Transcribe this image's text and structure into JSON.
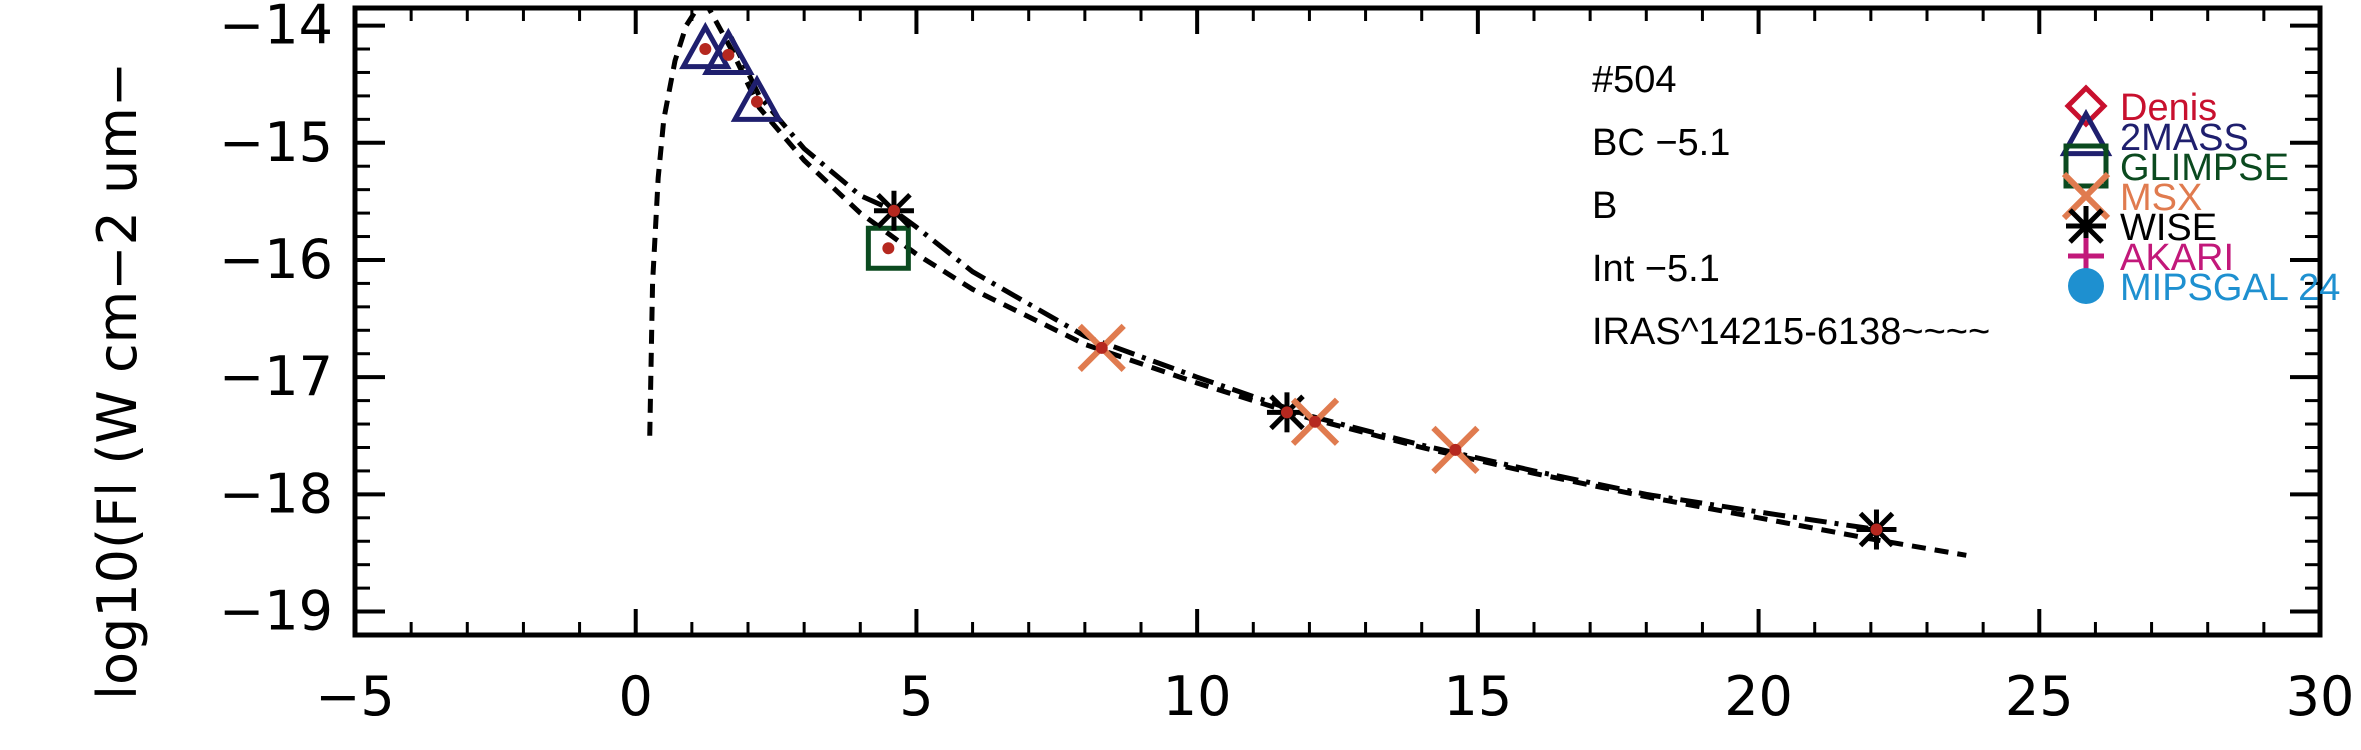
{
  "chart_data": {
    "type": "scatter",
    "ylabel": "log10(Fl (W cm−2 um−",
    "xlim": [
      -5,
      30
    ],
    "ylim": [
      -19.2,
      -13.85
    ],
    "x_ticks": [
      -5,
      0,
      5,
      10,
      15,
      20,
      25,
      30
    ],
    "x_tick_labels": [
      "−5",
      "0",
      "5",
      "10",
      "15",
      "20",
      "25",
      "30"
    ],
    "y_ticks": [
      -14,
      -15,
      -16,
      -17,
      -18,
      -19
    ],
    "y_tick_labels": [
      "−14",
      "−15",
      "−16",
      "−17",
      "−18",
      "−19"
    ],
    "annotations": [
      "#504",
      "BC −5.1",
      "B",
      "Int −5.1",
      "IRAS^14215-6138~~~~"
    ],
    "legend": {
      "placement": "top-right",
      "entries": [
        {
          "label": "Denis",
          "color": "#c8102e",
          "marker": "diamond"
        },
        {
          "label": "2MASS",
          "color": "#1f1f6e",
          "marker": "triangle"
        },
        {
          "label": "GLIMPSE",
          "color": "#0b4a1f",
          "marker": "square"
        },
        {
          "label": "MSX",
          "color": "#e07b4f",
          "marker": "x"
        },
        {
          "label": "WISE",
          "color": "#000000",
          "marker": "asterisk"
        },
        {
          "label": "AKARI",
          "color": "#c2187a",
          "marker": "plus"
        },
        {
          "label": "MIPSGAL 24",
          "color": "#1e90d0",
          "marker": "circle"
        }
      ]
    },
    "series": [
      {
        "marker": "triangle",
        "color": "#1f1f6e",
        "x": [
          1.24,
          1.65,
          2.16
        ],
        "y": [
          -14.2,
          -14.25,
          -14.65
        ]
      },
      {
        "marker": "square",
        "color": "#0b4a1f",
        "x": [
          4.5
        ],
        "y": [
          -15.9
        ]
      },
      {
        "marker": "asterisk",
        "color": "#000000",
        "x": [
          4.6,
          11.6,
          22.1
        ],
        "y": [
          -15.58,
          -17.3,
          -18.3
        ]
      },
      {
        "marker": "x",
        "color": "#e07b4f",
        "x": [
          8.3,
          12.1,
          14.6
        ],
        "y": [
          -16.75,
          -17.38,
          -17.62
        ]
      },
      {
        "marker": "dot",
        "color": "#b5281f",
        "x": [
          1.24,
          1.65,
          2.16,
          4.5,
          4.6,
          8.3,
          11.6,
          12.1,
          14.6,
          22.1
        ],
        "y": [
          -14.2,
          -14.25,
          -14.65,
          -15.9,
          -15.58,
          -16.75,
          -17.3,
          -17.38,
          -17.62,
          -18.3
        ]
      }
    ],
    "curves": [
      {
        "style": "dashed",
        "x": [
          0.25,
          0.3,
          0.4,
          0.5,
          0.7,
          0.9,
          1.1,
          1.3,
          1.7,
          2.2,
          3.0,
          4.0,
          5.0,
          6.0,
          8.0,
          10.0,
          12.0,
          14.0,
          16.0,
          18.0,
          20.0,
          22.0,
          23.7
        ],
        "y": [
          -17.5,
          -16.2,
          -15.3,
          -14.8,
          -14.3,
          -14.0,
          -13.85,
          -13.85,
          -14.2,
          -14.7,
          -15.15,
          -15.6,
          -15.95,
          -16.25,
          -16.72,
          -17.05,
          -17.35,
          -17.6,
          -17.82,
          -18.02,
          -18.2,
          -18.38,
          -18.52
        ]
      },
      {
        "style": "dashdot",
        "x": [
          1.7,
          2.2,
          3.0,
          4.0,
          4.6,
          5.0,
          6.0,
          8.0,
          10.0,
          12.0,
          14.0,
          16.0,
          18.0,
          20.0,
          22.1
        ],
        "y": [
          -14.1,
          -14.6,
          -15.05,
          -15.45,
          -15.58,
          -15.72,
          -16.1,
          -16.65,
          -17.0,
          -17.33,
          -17.58,
          -17.8,
          -18.0,
          -18.15,
          -18.3
        ]
      }
    ]
  }
}
